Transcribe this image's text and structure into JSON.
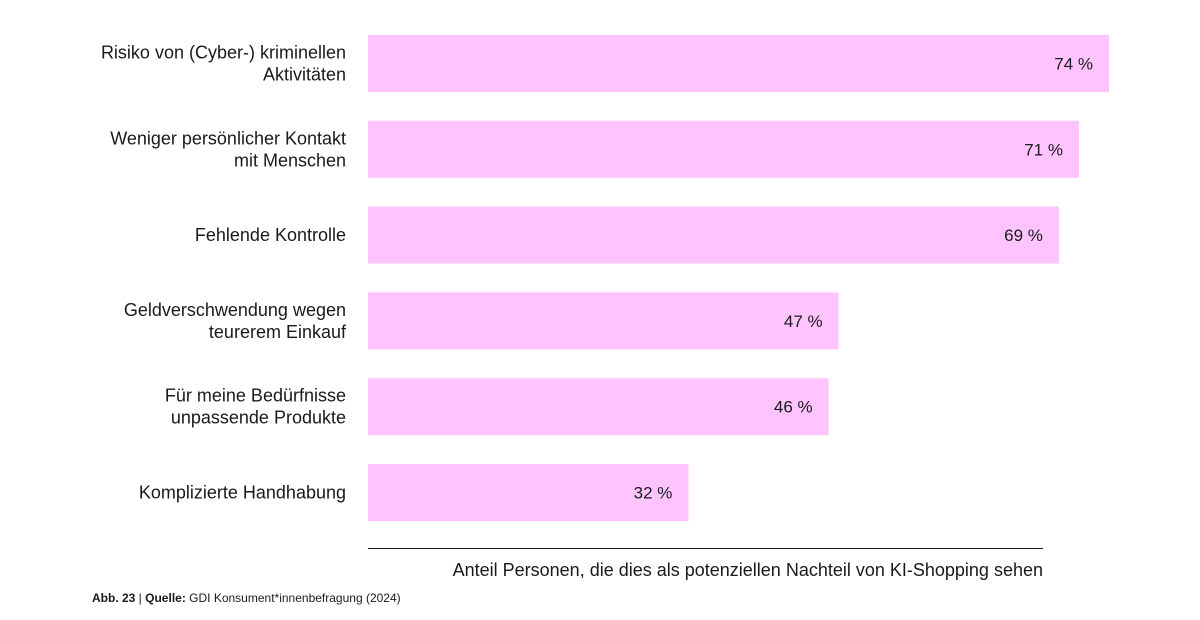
{
  "chart_data": {
    "type": "bar",
    "orientation": "horizontal",
    "categories": [
      [
        "Risiko von (Cyber-) kriminellen",
        "Aktivitäten"
      ],
      [
        "Weniger persönlicher Kontakt",
        "mit Menschen"
      ],
      [
        "Fehlende Kontrolle"
      ],
      [
        "Geldverschwendung wegen",
        "teurerem Einkauf"
      ],
      [
        "Für meine Bedürfnisse",
        "unpassende Produkte"
      ],
      [
        "Komplizierte Handhabung"
      ]
    ],
    "values": [
      74,
      71,
      69,
      47,
      46,
      32
    ],
    "value_labels": [
      "74 %",
      "71 %",
      "69 %",
      "47 %",
      "46 %",
      "32 %"
    ],
    "xlabel": "Anteil Personen, die dies als potenziellen Nachteil von KI-Shopping sehen",
    "xlim": [
      0,
      74
    ],
    "bar_color": "#ffc4ff",
    "grid": false
  },
  "footer": {
    "fig_label": "Abb. 23",
    "separator": " | ",
    "source_label": "Quelle:",
    "source_text": " GDI Konsument*innenbefragung (2024)"
  }
}
